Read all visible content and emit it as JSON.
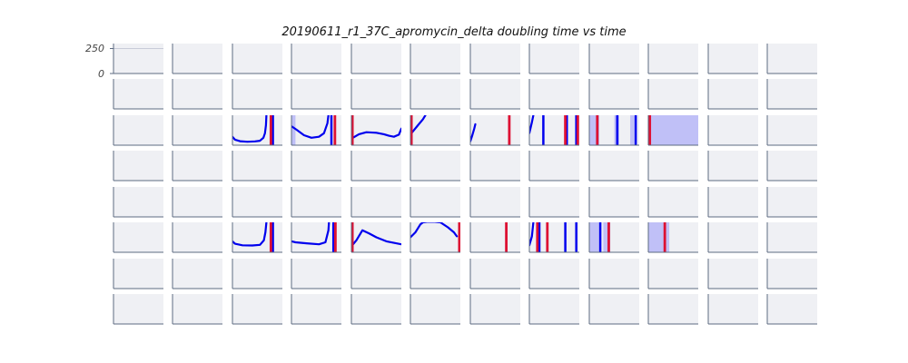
{
  "chart_data": {
    "type": "line",
    "title": "20190611_r1_37C_apromycin_delta doubling time vs time",
    "grid_rows": 8,
    "grid_cols": 12,
    "shared_y_ticks": [
      "250",
      "0"
    ],
    "ylim": [
      0,
      300
    ],
    "xlim": [
      0,
      1
    ],
    "colors": {
      "panel_background": "#eff0f4",
      "axis": "#5d6b82",
      "curve": "#0000ee",
      "marker": "#dd1133",
      "band": "#c0c0f7",
      "reference": "#c8ccd8"
    },
    "reference_line": {
      "row": 0,
      "col": 0,
      "y": 250
    },
    "panels": [
      {
        "row": 2,
        "col": 2,
        "curve": [
          [
            0,
            85
          ],
          [
            0.05,
            55
          ],
          [
            0.15,
            40
          ],
          [
            0.3,
            35
          ],
          [
            0.45,
            38
          ],
          [
            0.55,
            45
          ],
          [
            0.62,
            75
          ],
          [
            0.65,
            120
          ],
          [
            0.67,
            200
          ],
          [
            0.68,
            300
          ]
        ],
        "bands": [],
        "blue_lines": [
          0.81
        ],
        "red_lines": [
          0.77
        ]
      },
      {
        "row": 2,
        "col": 3,
        "curve": [
          [
            0,
            190
          ],
          [
            0.1,
            155
          ],
          [
            0.25,
            100
          ],
          [
            0.4,
            75
          ],
          [
            0.55,
            85
          ],
          [
            0.65,
            120
          ],
          [
            0.72,
            220
          ],
          [
            0.74,
            300
          ]
        ],
        "bands": [
          [
            0,
            0.08
          ]
        ],
        "blue_lines": [
          0.8
        ],
        "red_lines": [
          0.87
        ]
      },
      {
        "row": 2,
        "col": 4,
        "curve": [
          [
            0,
            65
          ],
          [
            0.15,
            110
          ],
          [
            0.3,
            130
          ],
          [
            0.5,
            125
          ],
          [
            0.65,
            110
          ],
          [
            0.75,
            95
          ],
          [
            0.85,
            85
          ],
          [
            0.95,
            105
          ],
          [
            1,
            165
          ]
        ],
        "bands": [],
        "blue_lines": [],
        "red_lines": [
          0.02
        ]
      },
      {
        "row": 2,
        "col": 5,
        "curve": [
          [
            0.02,
            120
          ],
          [
            0.15,
            200
          ],
          [
            0.25,
            260
          ],
          [
            0.3,
            300
          ]
        ],
        "bands": [],
        "blue_lines": [],
        "red_lines": [
          0.02
        ]
      },
      {
        "row": 2,
        "col": 6,
        "curve": [
          [
            0,
            40
          ],
          [
            0.04,
            100
          ],
          [
            0.08,
            170
          ],
          [
            0.1,
            210
          ]
        ],
        "bands": [],
        "blue_lines": [],
        "red_lines": [
          0.78
        ]
      },
      {
        "row": 2,
        "col": 7,
        "curve": [
          [
            0,
            120
          ],
          [
            0.05,
            230
          ],
          [
            0.08,
            300
          ]
        ],
        "bands": [
          [
            0.7,
            0.77
          ]
        ],
        "blue_lines": [
          0.28,
          0.75,
          0.94
        ],
        "red_lines": [
          0.72,
          0.97
        ]
      },
      {
        "row": 2,
        "col": 8,
        "curve": [],
        "bands": [
          [
            0,
            0.2
          ],
          [
            0.5,
            0.6
          ],
          [
            0.82,
            0.92
          ]
        ],
        "blue_lines": [
          0.56,
          0.93
        ],
        "red_lines": [
          0.16
        ]
      },
      {
        "row": 2,
        "col": 9,
        "curve": [],
        "bands": [
          [
            0,
            1
          ]
        ],
        "blue_lines": [],
        "red_lines": [
          0.03
        ]
      },
      {
        "row": 5,
        "col": 2,
        "curve": [
          [
            0,
            110
          ],
          [
            0.05,
            85
          ],
          [
            0.2,
            70
          ],
          [
            0.4,
            68
          ],
          [
            0.55,
            75
          ],
          [
            0.63,
            120
          ],
          [
            0.66,
            200
          ],
          [
            0.68,
            300
          ]
        ],
        "bands": [],
        "blue_lines": [
          0.81
        ],
        "red_lines": [
          0.77
        ]
      },
      {
        "row": 5,
        "col": 3,
        "curve": [
          [
            0,
            110
          ],
          [
            0.08,
            100
          ],
          [
            0.3,
            90
          ],
          [
            0.55,
            80
          ],
          [
            0.68,
            100
          ],
          [
            0.74,
            220
          ],
          [
            0.75,
            300
          ]
        ],
        "bands": [],
        "blue_lines": [
          0.84
        ],
        "red_lines": [
          0.88
        ]
      },
      {
        "row": 5,
        "col": 4,
        "curve": [
          [
            0,
            60
          ],
          [
            0.1,
            120
          ],
          [
            0.22,
            220
          ],
          [
            0.35,
            190
          ],
          [
            0.5,
            150
          ],
          [
            0.7,
            110
          ],
          [
            1,
            80
          ]
        ],
        "bands": [],
        "blue_lines": [],
        "red_lines": [
          0.02
        ]
      },
      {
        "row": 5,
        "col": 5,
        "curve": [
          [
            0,
            150
          ],
          [
            0.1,
            200
          ],
          [
            0.2,
            280
          ],
          [
            0.25,
            300
          ],
          [
            0.4,
            310
          ],
          [
            0.6,
            300
          ],
          [
            0.75,
            250
          ],
          [
            0.87,
            200
          ],
          [
            0.93,
            160
          ]
        ],
        "bands": [],
        "blue_lines": [],
        "red_lines": [
          0.98
        ]
      },
      {
        "row": 5,
        "col": 6,
        "curve": [],
        "bands": [],
        "blue_lines": [],
        "red_lines": [
          0.72
        ]
      },
      {
        "row": 5,
        "col": 7,
        "curve": [
          [
            0,
            70
          ],
          [
            0.05,
            160
          ],
          [
            0.08,
            300
          ]
        ],
        "bands": [],
        "blue_lines": [
          0.2,
          0.72,
          0.94
        ],
        "red_lines": [
          0.16,
          0.36
        ]
      },
      {
        "row": 5,
        "col": 8,
        "curve": [],
        "bands": [
          [
            0,
            0.22
          ],
          [
            0.28,
            0.42
          ]
        ],
        "blue_lines": [
          0.22
        ],
        "red_lines": [
          0.39
        ]
      },
      {
        "row": 5,
        "col": 9,
        "curve": [],
        "bands": [
          [
            0,
            0.42
          ]
        ],
        "blue_lines": [],
        "red_lines": [
          0.33
        ]
      }
    ]
  }
}
